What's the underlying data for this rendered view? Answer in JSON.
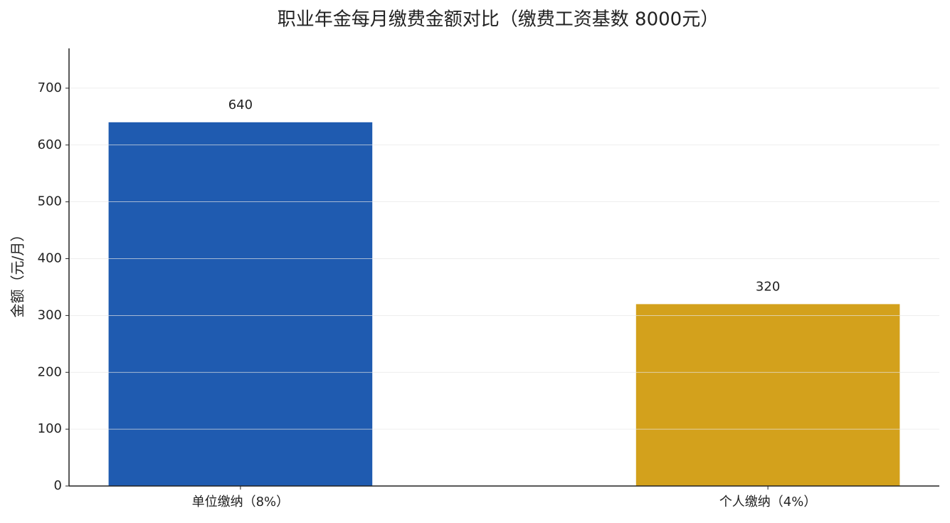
{
  "chart_data": {
    "type": "bar",
    "title": "职业年金每月缴费金额对比（缴费工资基数 8000元）",
    "y_label": "金额（元/月）",
    "categories": [
      "单位缴纳（8%）",
      "个人缴纳（4%）"
    ],
    "values": [
      640,
      320
    ],
    "colors": [
      "#1f5bb0",
      "#d3a11c"
    ],
    "ylim": [
      0,
      770
    ],
    "yticks": [
      0,
      100,
      200,
      300,
      400,
      500,
      600,
      700
    ],
    "grid": true
  }
}
